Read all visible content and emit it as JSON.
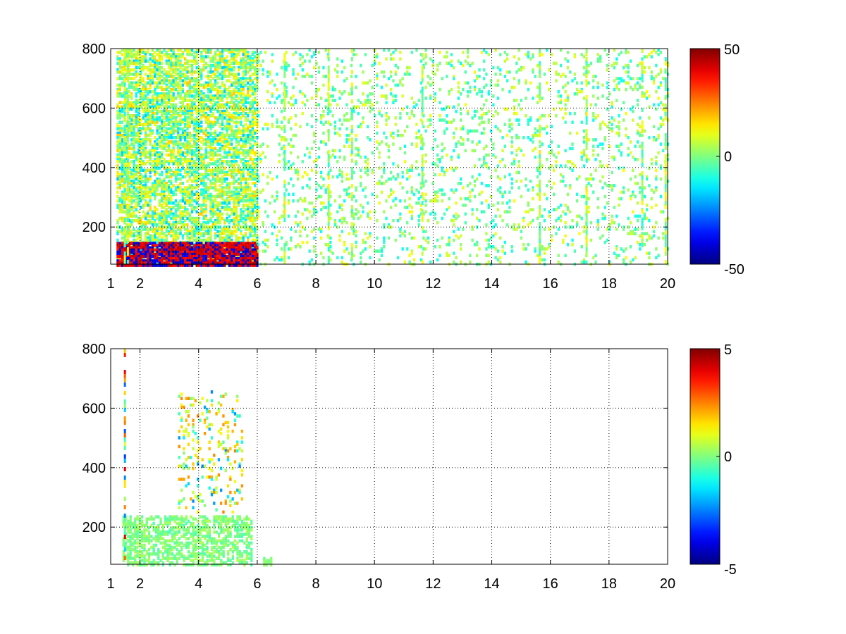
{
  "chart_data": [
    {
      "type": "heatmap",
      "title": "",
      "xlabel": "",
      "ylabel": "",
      "xlim": [
        1,
        20
      ],
      "ylim": [
        75,
        800
      ],
      "grid": true,
      "x_ticks": [
        "1",
        "2",
        "4",
        "6",
        "8",
        "10",
        "12",
        "14",
        "16",
        "18",
        "20"
      ],
      "y_ticks": [
        "200",
        "400",
        "600",
        "800"
      ],
      "colorbar": {
        "range": [
          -50,
          50
        ],
        "ticks": [
          "50",
          "0",
          "-50"
        ],
        "colormap": "jet"
      },
      "regions": [
        {
          "x": [
            1.2,
            6
          ],
          "y": [
            75,
            800
          ],
          "density": 0.65,
          "cmin": 0.0,
          "cmax": 0.18,
          "bias": 0.1
        },
        {
          "x": [
            1.2,
            6
          ],
          "y": [
            75,
            150
          ],
          "density": 0.95,
          "cmin": 0.35,
          "cmax": 0.45,
          "bias": 0.15
        },
        {
          "x": [
            6,
            20
          ],
          "y": [
            75,
            800
          ],
          "density": 0.12,
          "cmin": 0.0,
          "cmax": 0.12,
          "bias": 0.0
        }
      ],
      "vertical_streaks": [
        1.45,
        1.55,
        6.9,
        8.4,
        9.2,
        11.6,
        15.6,
        17.2,
        19.1,
        19.9
      ],
      "colors": {
        "background": "#ffffff",
        "axis": "#000000",
        "grid": "#000000"
      }
    },
    {
      "type": "heatmap",
      "title": "",
      "xlabel": "",
      "ylabel": "",
      "xlim": [
        1,
        20
      ],
      "ylim": [
        75,
        800
      ],
      "grid": true,
      "x_ticks": [
        "1",
        "2",
        "4",
        "6",
        "8",
        "10",
        "12",
        "14",
        "16",
        "18",
        "20"
      ],
      "y_ticks": [
        "200",
        "400",
        "600",
        "800"
      ],
      "colorbar": {
        "range": [
          -5,
          5
        ],
        "ticks": [
          "5",
          "0",
          "-5"
        ],
        "colormap": "jet"
      },
      "regions": [
        {
          "x": [
            1.4,
            5.8
          ],
          "y": [
            75,
            240
          ],
          "density": 0.55,
          "cmin": 0.0,
          "cmax": 0.05,
          "bias": 0.0
        },
        {
          "x": [
            3.3,
            5.5
          ],
          "y": [
            250,
            660
          ],
          "density": 0.15,
          "cmin": 0.0,
          "cmax": 0.25,
          "bias": 0.2
        },
        {
          "x": [
            6.2,
            6.5
          ],
          "y": [
            75,
            100
          ],
          "density": 0.8,
          "cmin": 0.0,
          "cmax": 0.02,
          "bias": 0.0
        }
      ],
      "vertical_streaks": [
        1.45
      ],
      "colors": {
        "background": "#ffffff",
        "axis": "#000000",
        "grid": "#000000"
      }
    }
  ]
}
